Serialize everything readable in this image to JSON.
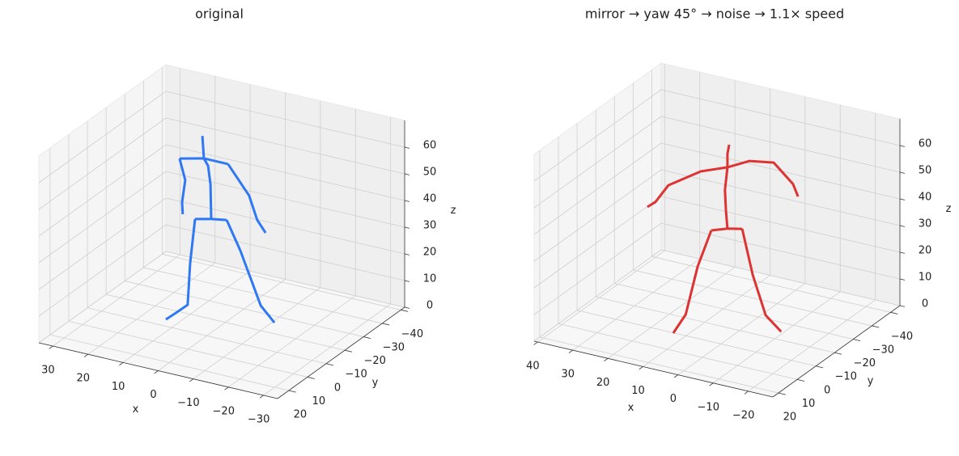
{
  "chart_data": [
    {
      "type": "line3d",
      "title": "original",
      "xlabel": "x",
      "ylabel": "y",
      "zlabel": "z",
      "xlim": [
        -34,
        34
      ],
      "ylim": [
        -42,
        26
      ],
      "zlim": [
        0,
        70
      ],
      "xticks": [
        {
          "value": -30,
          "label": "−30"
        },
        {
          "value": -20,
          "label": "−20"
        },
        {
          "value": -10,
          "label": "−10"
        },
        0,
        10,
        20,
        30
      ],
      "yticks": [
        {
          "value": -40,
          "label": "−40"
        },
        {
          "value": -30,
          "label": "−30"
        },
        {
          "value": -20,
          "label": "−20"
        },
        {
          "value": -10,
          "label": "−10"
        },
        0,
        10,
        20
      ],
      "zticks": [
        0,
        10,
        20,
        30,
        40,
        50,
        60
      ],
      "grid": true,
      "series": [
        {
          "color": "#2f78f4",
          "x": [
            5.5,
            5.1,
            3.9,
            3.2,
            3.0
          ],
          "y": [
            -8,
            -8,
            -8,
            -8,
            -8
          ],
          "z": [
            69.2,
            60.9,
            58.5,
            51.7,
            38.8
          ]
        },
        {
          "color": "#2f78f4",
          "x": [
            12.0,
            5.1,
            -1.8
          ],
          "y": [
            -8,
            -8,
            -8
          ],
          "z": [
            58.7,
            60.9,
            60.9
          ]
        },
        {
          "color": "#2f78f4",
          "x": [
            12.0,
            10.4,
            11.3,
            11.1
          ],
          "y": [
            -8,
            -8,
            -8,
            -8
          ],
          "z": [
            58.7,
            51.1,
            42.6,
            38.1
          ]
        },
        {
          "color": "#2f78f4",
          "x": [
            -1.8,
            -7.8,
            -10.1,
            -12.5
          ],
          "y": [
            -8,
            -8,
            -8,
            -8
          ],
          "z": [
            60.9,
            50.9,
            42.5,
            38.4
          ]
        },
        {
          "color": "#2f78f4",
          "x": [
            7.6,
            3.0,
            -1.4
          ],
          "y": [
            -8,
            -8,
            -8
          ],
          "z": [
            37.4,
            38.8,
            39.8
          ]
        },
        {
          "color": "#2f78f4",
          "x": [
            7.6,
            9.0,
            9.7,
            13.1,
            13.7
          ],
          "y": [
            -8,
            -8,
            -8,
            -8,
            -3.8
          ],
          "z": [
            37.4,
            20.6,
            4.6,
            0.5,
            0
          ]
        },
        {
          "color": "#2f78f4",
          "x": [
            -1.4,
            -5.3,
            -11.1,
            -15.0
          ],
          "y": [
            -8,
            -8,
            -8,
            -8
          ],
          "z": [
            39.8,
            29.5,
            10.7,
            5.5
          ]
        }
      ]
    },
    {
      "type": "line3d",
      "title": "mirror → yaw 45° → noise → 1.1× speed",
      "xlabel": "x",
      "ylabel": "y",
      "zlabel": "z",
      "xlim": [
        -27,
        41
      ],
      "ylim": [
        -45,
        23
      ],
      "zlim": [
        0,
        70
      ],
      "xticks": [
        {
          "value": -20,
          "label": "−20"
        },
        {
          "value": -10,
          "label": "−10"
        },
        0,
        10,
        20,
        30,
        40
      ],
      "yticks": [
        {
          "value": -40,
          "label": "−40"
        },
        {
          "value": -30,
          "label": "−30"
        },
        {
          "value": -20,
          "label": "−20"
        },
        {
          "value": -10,
          "label": "−10"
        },
        0,
        10,
        20
      ],
      "zticks": [
        0,
        10,
        20,
        30,
        40,
        50,
        60
      ],
      "grid": true,
      "series": [
        {
          "color": "#dd3333",
          "x": [
            4.6,
            5.1,
            5.1,
            5.8,
            5.5,
            5.1
          ],
          "y": [
            -13,
            -13,
            -13,
            -13,
            -13,
            -13
          ],
          "z": [
            66.7,
            63.2,
            58.1,
            49.4,
            41.3,
            35.1
          ]
        },
        {
          "color": "#dd3333",
          "x": [
            5.1,
            -1.2,
            -8.1,
            -13.6,
            -15.0
          ],
          "y": [
            -13,
            -13,
            -13,
            -13,
            -13
          ],
          "z": [
            58.1,
            62.4,
            63.9,
            57.5,
            53.3
          ]
        },
        {
          "color": "#dd3333",
          "x": [
            5.1,
            12.7,
            21.9,
            25.6,
            27.9
          ],
          "y": [
            -13,
            -13,
            -13,
            -13,
            -13
          ],
          "z": [
            58.1,
            54.2,
            46.2,
            38.8,
            36.2
          ]
        },
        {
          "color": "#dd3333",
          "x": [
            9.7,
            5.1,
            0.9
          ],
          "y": [
            -13,
            -13,
            -13
          ],
          "z": [
            33.0,
            35.1,
            36.3
          ]
        },
        {
          "color": "#dd3333",
          "x": [
            9.7,
            13.6,
            16.4,
            13.5
          ],
          "y": [
            -13,
            -13,
            -11.9,
            0.2
          ],
          "z": [
            33.0,
            18.2,
            0,
            0
          ]
        },
        {
          "color": "#dd3333",
          "x": [
            0.9,
            -2.1,
            -5.8,
            -10.2
          ],
          "y": [
            -13,
            -13,
            -13,
            -13
          ],
          "z": [
            36.3,
            20.0,
            6.0,
            1.2
          ]
        }
      ]
    }
  ]
}
